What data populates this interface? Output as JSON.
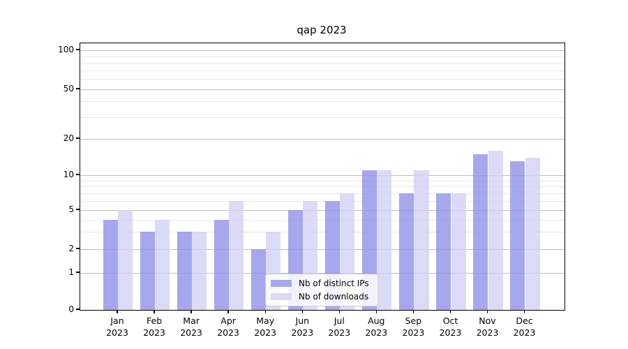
{
  "chart_data": {
    "type": "bar",
    "title": "qap 2023",
    "x_months": [
      "Jan",
      "Feb",
      "Mar",
      "Apr",
      "May",
      "Jun",
      "Jul",
      "Aug",
      "Sep",
      "Oct",
      "Nov",
      "Dec"
    ],
    "x_year": "2023",
    "series": [
      {
        "name": "Nb of distinct IPs",
        "color": "#a7a7ee",
        "bar_rgba": "rgba(142,142,233,0.78)",
        "values": [
          4,
          3,
          3,
          4,
          2,
          5,
          6,
          11,
          7,
          7,
          15,
          13
        ]
      },
      {
        "name": "Nb of downloads",
        "color": "#dbdbf8",
        "bar_rgba": "rgba(209,209,246,0.78)",
        "values": [
          5,
          4,
          3,
          6,
          3,
          6,
          7,
          11,
          11,
          7,
          16,
          14
        ]
      }
    ],
    "xlabel": "",
    "ylabel": "",
    "yscale": "symlog-like (log above 1, linear to 0)",
    "ytick_labels": [
      "0",
      "1",
      "2",
      "5",
      "10",
      "20",
      "50",
      "100"
    ],
    "ytick_values": [
      0,
      1,
      2,
      5,
      10,
      20,
      50,
      100
    ],
    "minor_grid_values": [
      3,
      4,
      6,
      7,
      8,
      9,
      30,
      40,
      60,
      70,
      80,
      90
    ],
    "ylim": [
      0,
      112
    ],
    "grid": "on",
    "legend_position": "lower center inside plot"
  }
}
